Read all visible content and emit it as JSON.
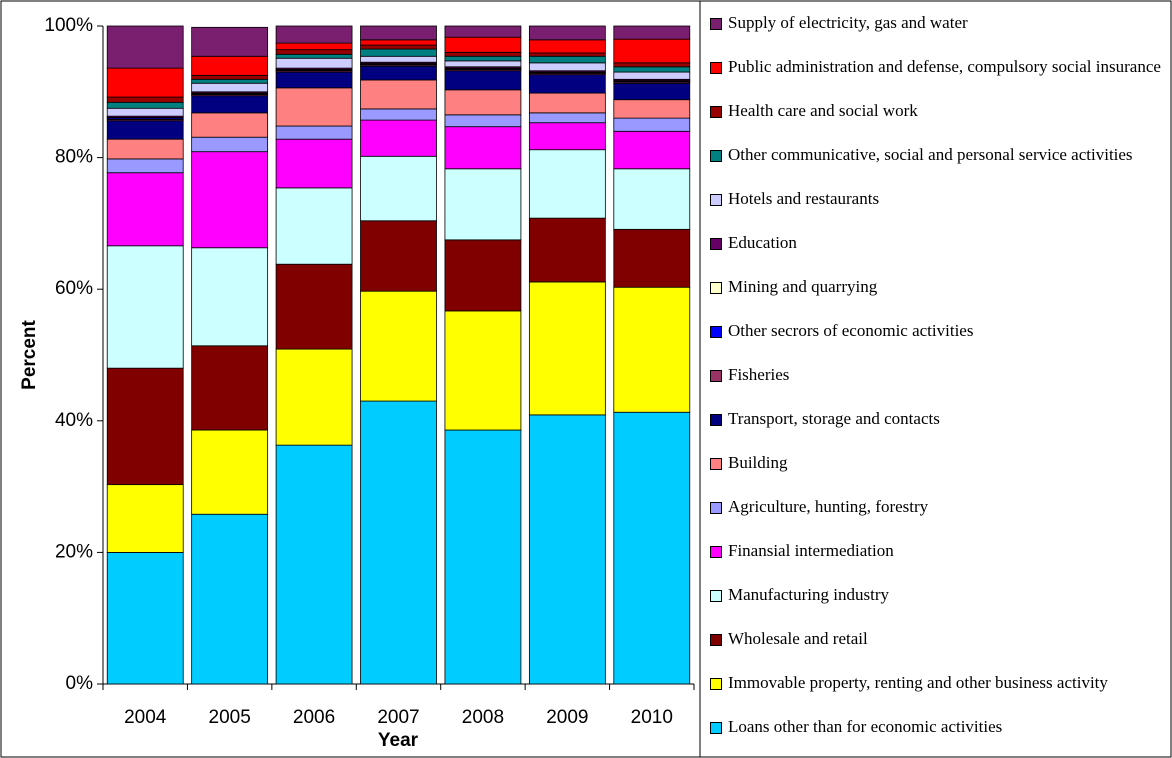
{
  "chart_data": {
    "type": "stacked_bar",
    "xlabel": "Year",
    "ylabel": "Percent",
    "categories": [
      "2004",
      "2005",
      "2006",
      "2007",
      "2008",
      "2009",
      "2010"
    ],
    "ylim": [
      0,
      100
    ],
    "yticks": [
      {
        "value": 0,
        "label": "0%"
      },
      {
        "value": 20,
        "label": "20%"
      },
      {
        "value": 40,
        "label": "40%"
      },
      {
        "value": 60,
        "label": "60%"
      },
      {
        "value": 80,
        "label": "80%"
      },
      {
        "value": 100,
        "label": "100%"
      }
    ],
    "series": [
      {
        "name": "Loans other than for economic activities",
        "color": "#00ccff",
        "values": [
          20.0,
          25.8,
          36.3,
          43.0,
          38.6,
          40.9,
          41.3
        ]
      },
      {
        "name": "Immovable property, renting and other business activity",
        "color": "#ffff00",
        "values": [
          10.3,
          12.8,
          14.6,
          16.7,
          18.1,
          20.2,
          19.0
        ]
      },
      {
        "name": "Wholesale and retail",
        "color": "#800000",
        "values": [
          17.7,
          12.8,
          12.9,
          10.7,
          10.8,
          9.7,
          8.8
        ]
      },
      {
        "name": "Manufacturing industry",
        "color": "#ccffff",
        "values": [
          18.6,
          14.9,
          11.6,
          9.8,
          10.8,
          10.4,
          9.2
        ]
      },
      {
        "name": "Finansial intermediation",
        "color": "#ff00ff",
        "values": [
          11.1,
          14.6,
          7.4,
          5.5,
          6.4,
          4.1,
          5.7
        ]
      },
      {
        "name": "Agriculture, hunting, forestry",
        "color": "#9999ff",
        "values": [
          2.1,
          2.2,
          2.0,
          1.7,
          1.8,
          1.5,
          2.0
        ]
      },
      {
        "name": "Building",
        "color": "#ff8080",
        "values": [
          3.0,
          3.7,
          5.8,
          4.4,
          3.8,
          3.0,
          2.8
        ]
      },
      {
        "name": "Transport, storage and contacts",
        "color": "#000080",
        "values": [
          2.8,
          2.6,
          2.4,
          2.1,
          2.9,
          2.8,
          2.5
        ]
      },
      {
        "name": "Fisheries",
        "color": "#993366",
        "values": [
          0.2,
          0.2,
          0.2,
          0.2,
          0.2,
          0.2,
          0.2
        ]
      },
      {
        "name": "Other secrors of economic activities",
        "color": "#0000ff",
        "values": [
          0.2,
          0.1,
          0.1,
          0.1,
          0.1,
          0.1,
          0.1
        ]
      },
      {
        "name": "Mining and quarrying",
        "color": "#ffffcc",
        "values": [
          0.1,
          0.1,
          0.1,
          0.1,
          0.1,
          0.1,
          0.1
        ]
      },
      {
        "name": "Education",
        "color": "#660066",
        "values": [
          0.2,
          0.2,
          0.2,
          0.2,
          0.2,
          0.2,
          0.2
        ]
      },
      {
        "name": "Hotels and restaurants",
        "color": "#ccccff",
        "values": [
          1.2,
          1.3,
          1.5,
          0.9,
          0.9,
          1.2,
          1.1
        ]
      },
      {
        "name": "Other communicative, social and personal service activities",
        "color": "#008080",
        "values": [
          0.9,
          0.6,
          0.6,
          1.1,
          0.7,
          1.0,
          0.8
        ]
      },
      {
        "name": "Health care and social work",
        "color": "#990000",
        "values": [
          0.8,
          0.6,
          0.7,
          0.6,
          0.6,
          0.5,
          0.6
        ]
      },
      {
        "name": "Public administration and defense, compulsory social insurance",
        "color": "#ff0000",
        "values": [
          4.4,
          2.9,
          1.0,
          0.8,
          2.3,
          2.0,
          3.6
        ]
      },
      {
        "name": "Supply of electricity, gas and water",
        "color": "#7a1f6f",
        "values": [
          6.4,
          4.4,
          2.6,
          2.1,
          1.7,
          2.1,
          2.0
        ]
      }
    ]
  }
}
